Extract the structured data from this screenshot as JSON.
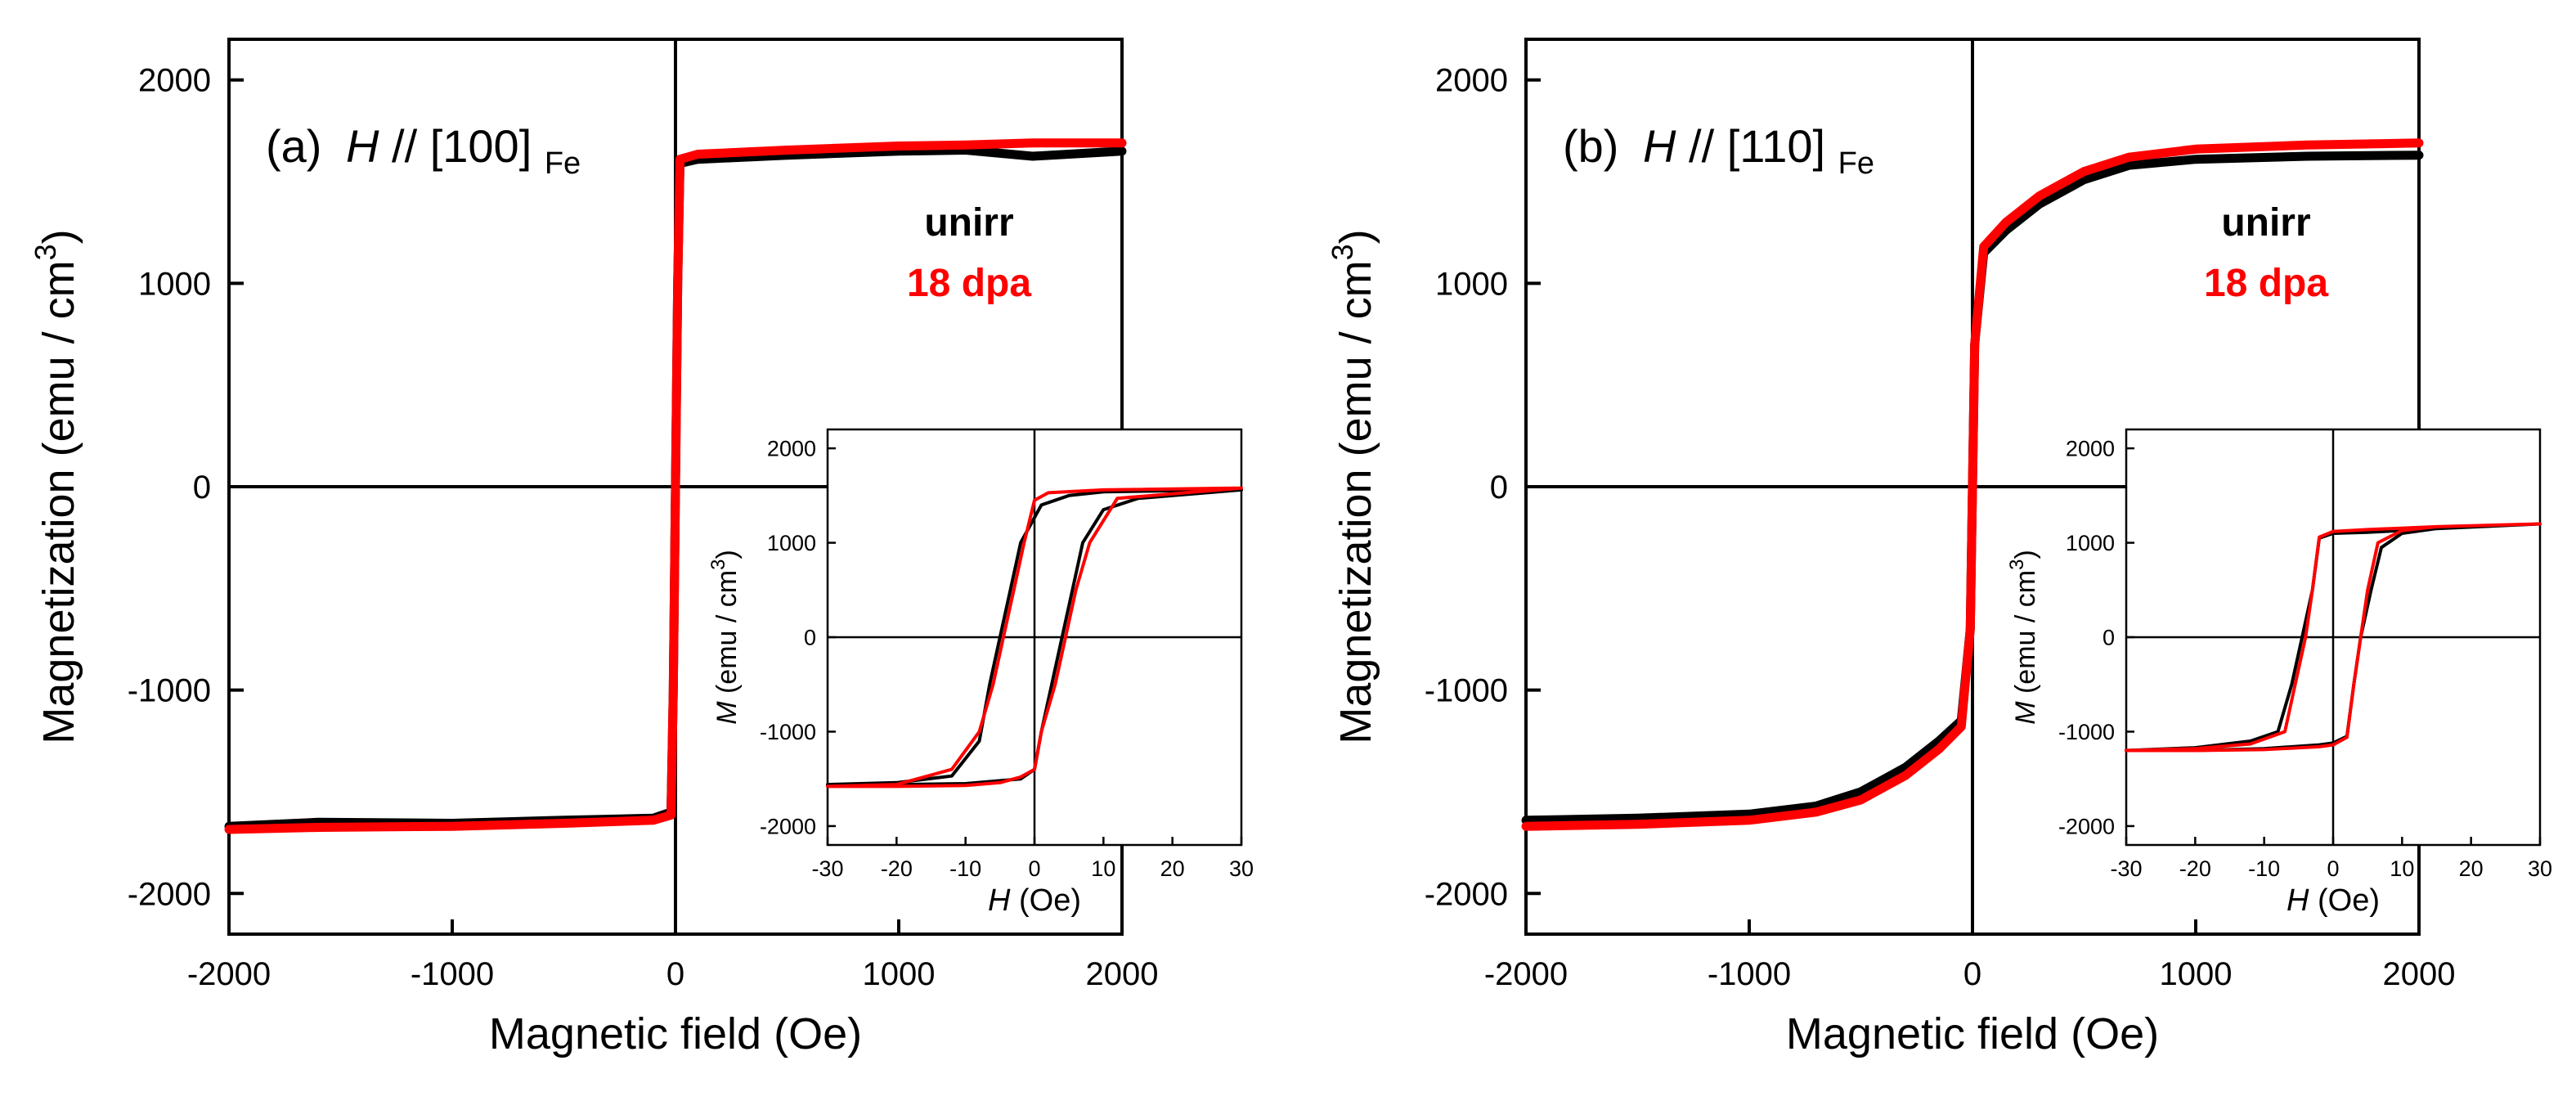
{
  "colors": {
    "unirr": "#000000",
    "irr": "#ff0000",
    "axis": "#000000"
  },
  "chart_data": [
    {
      "id": "a",
      "type": "line",
      "panel_label": "(a)",
      "annotation_italic": "H",
      "annotation_mid": " // [100]",
      "annotation_sub": "Fe",
      "xlabel": "Magnetic field (Oe)",
      "ylabel_main": "Magnetization (emu / cm",
      "ylabel_sup": "3",
      "ylabel_close": ")",
      "xlim": [
        -2000,
        2000
      ],
      "ylim": [
        -2200,
        2200
      ],
      "xticks": [
        -2000,
        -1000,
        0,
        1000,
        2000
      ],
      "yticks": [
        -2000,
        -1000,
        0,
        1000,
        2000
      ],
      "xticklabels": [
        "-2000",
        "-1000",
        "0",
        "1000",
        "2000"
      ],
      "yticklabels": [
        "-2000",
        "-1000",
        "0",
        "1000",
        "2000"
      ],
      "legend": [
        {
          "label": "unirr",
          "color": "#000000"
        },
        {
          "label": "18 dpa",
          "color": "#ff0000"
        }
      ],
      "series": [
        {
          "name": "unirr",
          "color": "#000000",
          "x": [
            -2000,
            -1600,
            -1000,
            -500,
            -100,
            -20,
            -10,
            0,
            10,
            20,
            100,
            500,
            1000,
            1300,
            1600,
            2000
          ],
          "y": [
            -1670,
            -1650,
            -1655,
            -1640,
            -1630,
            -1600,
            -1000,
            0,
            1000,
            1590,
            1610,
            1630,
            1650,
            1655,
            1625,
            1650
          ]
        },
        {
          "name": "18 dpa",
          "color": "#ff0000",
          "x": [
            -2000,
            -1600,
            -1000,
            -500,
            -100,
            -20,
            -10,
            0,
            10,
            20,
            100,
            500,
            1000,
            1300,
            1600,
            2000
          ],
          "y": [
            -1685,
            -1675,
            -1670,
            -1655,
            -1640,
            -1615,
            -1000,
            0,
            1000,
            1610,
            1635,
            1655,
            1675,
            1680,
            1690,
            1690
          ]
        }
      ],
      "inset": {
        "xlabel_italic": "H",
        "xlabel_rest": " (Oe)",
        "ylabel_italic": "M",
        "ylabel_rest": " (emu / cm",
        "ylabel_sup": "3",
        "ylabel_close": ")",
        "xlim": [
          -30,
          30
        ],
        "ylim": [
          -2200,
          2200
        ],
        "xticks": [
          -30,
          -20,
          -10,
          0,
          10,
          20,
          30
        ],
        "yticks": [
          -2000,
          -1000,
          0,
          1000,
          2000
        ],
        "xticklabels": [
          "-30",
          "-20",
          "-10",
          "0",
          "10",
          "20",
          "30"
        ],
        "yticklabels": [
          "-2000",
          "-1000",
          "0",
          "1000",
          "2000"
        ],
        "series": [
          {
            "name": "unirr",
            "color": "#000000",
            "x": [
              30,
              10,
              5,
              1,
              -2,
              -3.5,
              -5,
              -6.5,
              -8,
              -12,
              -20,
              -30,
              -20,
              -10,
              -2,
              0,
              1,
              2.5,
              4,
              5.5,
              7,
              10,
              15,
              30
            ],
            "y": [
              1560,
              1540,
              1500,
              1400,
              1000,
              500,
              0,
              -500,
              -1100,
              -1470,
              -1540,
              -1560,
              -1560,
              -1550,
              -1500,
              -1400,
              -1000,
              -500,
              0,
              500,
              1000,
              1350,
              1470,
              1560
            ]
          },
          {
            "name": "18 dpa",
            "color": "#ff0000",
            "x": [
              30,
              10,
              2,
              0,
              -1.5,
              -3,
              -4.5,
              -6,
              -8,
              -12,
              -20,
              -30,
              -20,
              -10,
              -5,
              -2,
              0,
              1,
              3,
              4.5,
              6,
              8,
              12,
              30
            ],
            "y": [
              1580,
              1560,
              1530,
              1450,
              1000,
              500,
              0,
              -500,
              -1000,
              -1400,
              -1560,
              -1580,
              -1580,
              -1570,
              -1540,
              -1480,
              -1400,
              -1000,
              -500,
              0,
              500,
              1000,
              1470,
              1580
            ]
          }
        ]
      }
    },
    {
      "id": "b",
      "type": "line",
      "panel_label": "(b)",
      "annotation_italic": "H",
      "annotation_mid": " // [110]",
      "annotation_sub": "Fe",
      "xlabel": "Magnetic field (Oe)",
      "ylabel_main": "Magnetization (emu / cm",
      "ylabel_sup": "3",
      "ylabel_close": ")",
      "xlim": [
        -2000,
        2000
      ],
      "ylim": [
        -2200,
        2200
      ],
      "xticks": [
        -2000,
        -1000,
        0,
        1000,
        2000
      ],
      "yticks": [
        -2000,
        -1000,
        0,
        1000,
        2000
      ],
      "xticklabels": [
        "-2000",
        "-1000",
        "0",
        "1000",
        "2000"
      ],
      "yticklabels": [
        "-2000",
        "-1000",
        "0",
        "1000",
        "2000"
      ],
      "legend": [
        {
          "label": "unirr",
          "color": "#000000"
        },
        {
          "label": "18 dpa",
          "color": "#ff0000"
        }
      ],
      "series": [
        {
          "name": "unirr",
          "color": "#000000",
          "x": [
            -2000,
            -1500,
            -1000,
            -700,
            -500,
            -300,
            -150,
            -50,
            -10,
            0,
            10,
            50,
            150,
            300,
            500,
            700,
            1000,
            1500,
            2000
          ],
          "y": [
            -1640,
            -1630,
            -1610,
            -1570,
            -1500,
            -1380,
            -1250,
            -1150,
            -700,
            0,
            700,
            1150,
            1260,
            1390,
            1510,
            1580,
            1610,
            1625,
            1630
          ]
        },
        {
          "name": "18 dpa",
          "color": "#ff0000",
          "x": [
            -2000,
            -1500,
            -1000,
            -700,
            -500,
            -300,
            -150,
            -50,
            -10,
            0,
            10,
            50,
            150,
            300,
            500,
            700,
            1000,
            1500,
            2000
          ],
          "y": [
            -1670,
            -1660,
            -1640,
            -1600,
            -1540,
            -1420,
            -1290,
            -1180,
            -700,
            0,
            700,
            1180,
            1300,
            1430,
            1550,
            1620,
            1660,
            1680,
            1690
          ]
        }
      ],
      "inset": {
        "xlabel_italic": "H",
        "xlabel_rest": " (Oe)",
        "ylabel_italic": "M",
        "ylabel_rest": " (emu / cm",
        "ylabel_sup": "3",
        "ylabel_close": ")",
        "xlim": [
          -30,
          30
        ],
        "ylim": [
          -2200,
          2200
        ],
        "xticks": [
          -30,
          -20,
          -10,
          0,
          10,
          20,
          30
        ],
        "yticks": [
          -2000,
          -1000,
          0,
          1000,
          2000
        ],
        "xticklabels": [
          "-30",
          "-20",
          "-10",
          "0",
          "10",
          "20",
          "30"
        ],
        "yticklabels": [
          "-2000",
          "-1000",
          "0",
          "1000",
          "2000"
        ],
        "series": [
          {
            "name": "unirr",
            "color": "#000000",
            "x": [
              30,
              15,
              5,
              0,
              -2,
              -3,
              -4.5,
              -6,
              -8,
              -12,
              -20,
              -30,
              -20,
              -10,
              -2,
              0,
              2,
              3,
              4,
              5.5,
              7,
              10,
              15,
              30
            ],
            "y": [
              1200,
              1150,
              1110,
              1100,
              1050,
              500,
              0,
              -500,
              -1000,
              -1100,
              -1170,
              -1200,
              -1200,
              -1180,
              -1140,
              -1120,
              -1050,
              -500,
              0,
              500,
              950,
              1100,
              1150,
              1200
            ]
          },
          {
            "name": "18 dpa",
            "color": "#ff0000",
            "x": [
              30,
              15,
              5,
              0,
              -2,
              -3,
              -4,
              -5.5,
              -7,
              -12,
              -20,
              -30,
              -20,
              -10,
              -2,
              0,
              2,
              3,
              4,
              5,
              6.5,
              10,
              15,
              30
            ],
            "y": [
              1200,
              1170,
              1140,
              1120,
              1060,
              500,
              0,
              -500,
              -1000,
              -1130,
              -1180,
              -1200,
              -1200,
              -1190,
              -1160,
              -1140,
              -1060,
              -500,
              0,
              500,
              1000,
              1130,
              1170,
              1200
            ]
          }
        ]
      }
    }
  ]
}
